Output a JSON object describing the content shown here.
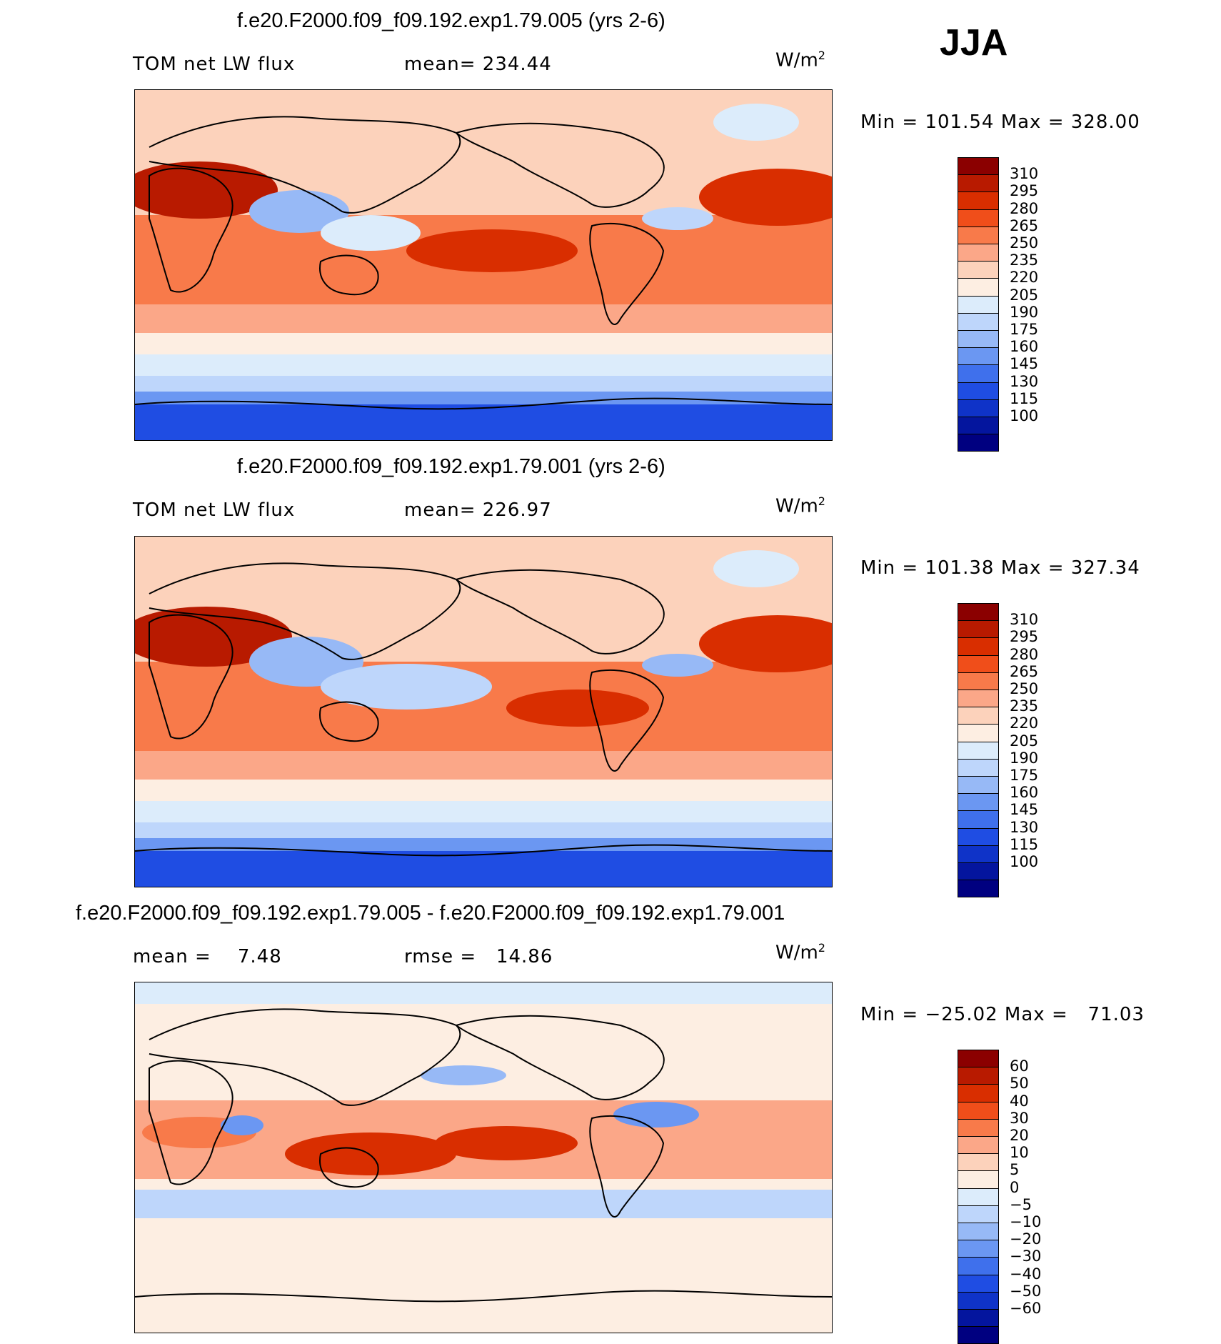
{
  "season": "JJA",
  "panels": [
    {
      "title": "f.e20.F2000.f09_f09.192.exp1.79.005 (yrs 2-6)",
      "left_label": "TOM net LW flux",
      "mid_label": "mean= 234.44",
      "units_base": "W/m",
      "units_exp": "2",
      "minmax": "Min = 101.54 Max = 328.00",
      "colorbar": {
        "colors": [
          "#8b0000",
          "#b81a00",
          "#d92e00",
          "#f04e1a",
          "#f87a4a",
          "#fba788",
          "#fcd2bb",
          "#fdeee2",
          "#dcecfb",
          "#bed6fb",
          "#97b9f6",
          "#6b97f2",
          "#3f70ec",
          "#1f4de3",
          "#0f33c8",
          "#04159e",
          "#000080"
        ],
        "labels": [
          "310",
          "295",
          "280",
          "265",
          "250",
          "235",
          "220",
          "205",
          "190",
          "175",
          "160",
          "145",
          "130",
          "115",
          "100"
        ]
      }
    },
    {
      "title": "f.e20.F2000.f09_f09.192.exp1.79.001 (yrs 2-6)",
      "left_label": "TOM net LW flux",
      "mid_label": "mean= 226.97",
      "units_base": "W/m",
      "units_exp": "2",
      "minmax": "Min = 101.38 Max = 327.34",
      "colorbar": {
        "colors": [
          "#8b0000",
          "#b81a00",
          "#d92e00",
          "#f04e1a",
          "#f87a4a",
          "#fba788",
          "#fcd2bb",
          "#fdeee2",
          "#dcecfb",
          "#bed6fb",
          "#97b9f6",
          "#6b97f2",
          "#3f70ec",
          "#1f4de3",
          "#0f33c8",
          "#04159e",
          "#000080"
        ],
        "labels": [
          "310",
          "295",
          "280",
          "265",
          "250",
          "235",
          "220",
          "205",
          "190",
          "175",
          "160",
          "145",
          "130",
          "115",
          "100"
        ]
      }
    },
    {
      "title": "f.e20.F2000.f09_f09.192.exp1.79.005 - f.e20.F2000.f09_f09.192.exp1.79.001",
      "left_label": "mean =    7.48",
      "mid_label": "rmse =   14.86",
      "units_base": "W/m",
      "units_exp": "2",
      "minmax": "Min = −25.02 Max =   71.03",
      "colorbar": {
        "colors": [
          "#8b0000",
          "#b81a00",
          "#d92e00",
          "#f04e1a",
          "#f87a4a",
          "#fba788",
          "#fcd2bb",
          "#fdeee2",
          "#dcecfb",
          "#bed6fb",
          "#97b9f6",
          "#6b97f2",
          "#3f70ec",
          "#1f4de3",
          "#0f33c8",
          "#04159e",
          "#000080"
        ],
        "labels": [
          "60",
          "50",
          "40",
          "30",
          "20",
          "10",
          "5",
          "0",
          "−5",
          "−10",
          "−20",
          "−30",
          "−40",
          "−50",
          "−60"
        ]
      }
    }
  ]
}
